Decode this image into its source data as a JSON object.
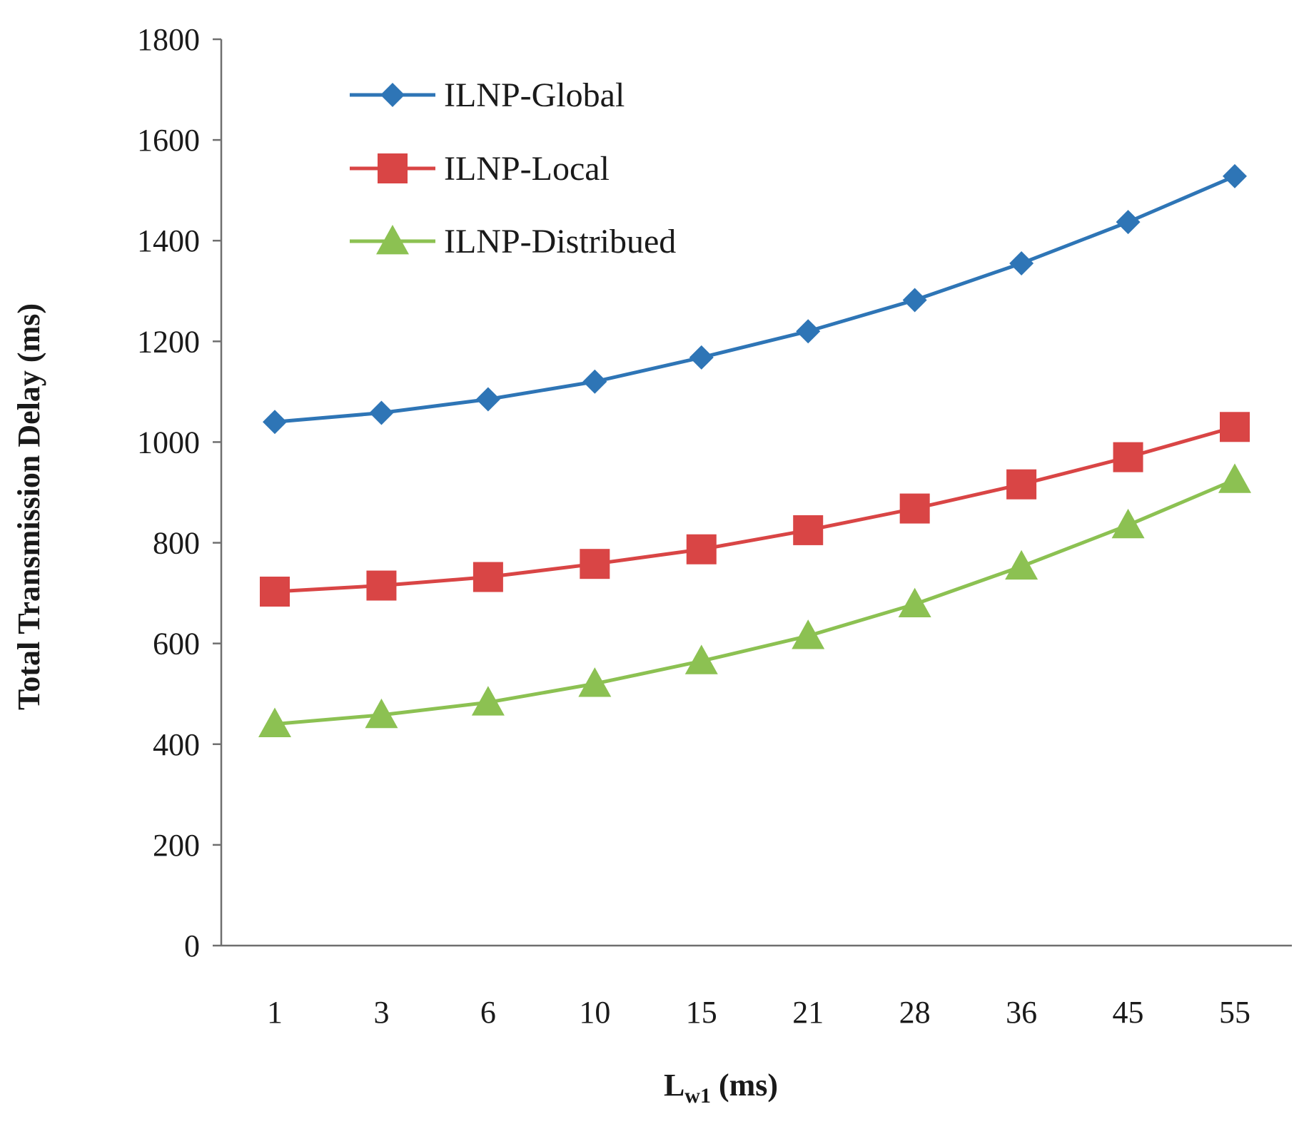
{
  "chart_data": {
    "type": "line",
    "title": "",
    "xlabel": "L",
    "xlabel_sub": "w1",
    "xlabel_unit": " (ms)",
    "ylabel": "Total Transmission Delay (ms)",
    "ylim": [
      0,
      1800
    ],
    "yticks": [
      0,
      200,
      400,
      600,
      800,
      1000,
      1200,
      1400,
      1600,
      1800
    ],
    "categories": [
      "1",
      "3",
      "6",
      "10",
      "15",
      "21",
      "28",
      "36",
      "45",
      "55"
    ],
    "grid": false,
    "legend_position": "top-left",
    "series": [
      {
        "name": "ILNP-Global",
        "color": "#2E75B6",
        "marker": "diamond",
        "values": [
          1040,
          1058,
          1085,
          1120,
          1168,
          1220,
          1282,
          1355,
          1437,
          1528
        ]
      },
      {
        "name": "ILNP-Local",
        "color": "#D94545",
        "marker": "square",
        "values": [
          703,
          715,
          732,
          758,
          787,
          825,
          868,
          916,
          970,
          1030
        ]
      },
      {
        "name": "ILNP-Distribued",
        "color": "#8CC152",
        "marker": "triangle",
        "values": [
          440,
          458,
          483,
          520,
          565,
          615,
          678,
          753,
          835,
          925
        ]
      }
    ]
  }
}
